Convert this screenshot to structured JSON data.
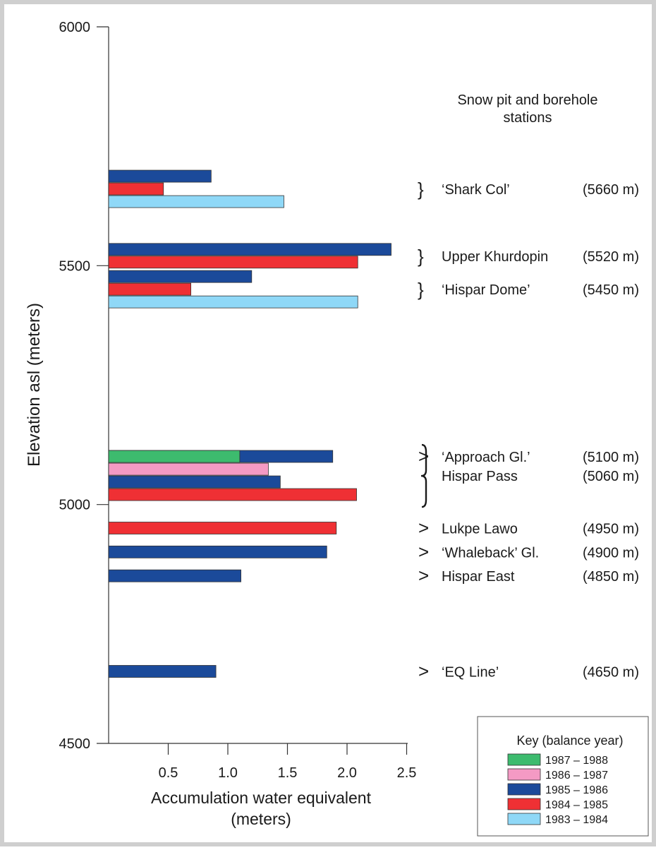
{
  "chart_data": {
    "type": "bar",
    "orientation": "horizontal",
    "ylabel": "Elevation asl (meters)",
    "xlabel_line1": "Accumulation water equivalent",
    "xlabel_line2": "(meters)",
    "yticks": [
      4500,
      5000,
      5500,
      6000
    ],
    "xticks": [
      "0.5",
      "1.0",
      "1.5",
      "2.0",
      "2.5"
    ],
    "xlim": [
      0,
      2.5
    ],
    "ylim": [
      4500,
      6000
    ],
    "stations_title_line1": "Snow pit and borehole",
    "stations_title_line2": "stations",
    "legend": {
      "title": "Key (balance year)",
      "placement": "bottom-right",
      "items": [
        {
          "label": "1987 – 1988",
          "color": "#3dbb6e"
        },
        {
          "label": "1986 – 1987",
          "color": "#f49ac4"
        },
        {
          "label": "1985 – 1986",
          "color": "#1b4a9a"
        },
        {
          "label": "1984 – 1985",
          "color": "#ef3034"
        },
        {
          "label": "1983 – 1984",
          "color": "#8fd8f7"
        }
      ]
    },
    "groups": [
      {
        "name": "‘Shark Col’",
        "elevation_label": "(5660 m)",
        "elevation": 5660,
        "symbol": "brace",
        "bars": [
          {
            "series": "1985 – 1986",
            "value": 0.86
          },
          {
            "series": "1984 – 1985",
            "value": 0.46
          },
          {
            "series": "1983 – 1984",
            "value": 1.47
          }
        ]
      },
      {
        "name": "Upper Khurdopin",
        "elevation_label": "(5520 m)",
        "elevation": 5520,
        "symbol": "brace",
        "bars": [
          {
            "series": "1985 – 1986",
            "value": 2.37
          },
          {
            "series": "1984 – 1985",
            "value": 2.09
          }
        ]
      },
      {
        "name": "‘Hispar Dome’",
        "elevation_label": "(5450 m)",
        "elevation": 5450,
        "symbol": "brace",
        "bars": [
          {
            "series": "1985 – 1986",
            "value": 1.2
          },
          {
            "series": "1984 – 1985",
            "value": 0.69
          },
          {
            "series": "1983 – 1984",
            "value": 2.09
          }
        ]
      },
      {
        "name": "‘Approach Gl.’",
        "elevation_label": "(5100 m)",
        "elevation": 5100,
        "symbol": "arrow",
        "bars": [
          {
            "series": "1985 – 1986",
            "value": 1.88
          }
        ]
      },
      {
        "name": "Hispar Pass",
        "elevation_label": "(5060 m)",
        "elevation": 5060,
        "symbol": "tallbrace",
        "bars": [
          {
            "series": "1987 – 1988",
            "value": 1.1
          },
          {
            "series": "1986 – 1987",
            "value": 1.34
          },
          {
            "series": "1985 – 1986",
            "value": 1.44
          },
          {
            "series": "1984 – 1985",
            "value": 2.08
          }
        ]
      },
      {
        "name": "Lukpe Lawo",
        "elevation_label": "(4950 m)",
        "elevation": 4950,
        "symbol": "arrow",
        "bars": [
          {
            "series": "1984 – 1985",
            "value": 1.91
          }
        ]
      },
      {
        "name": "‘Whaleback’ Gl.",
        "elevation_label": "(4900 m)",
        "elevation": 4900,
        "symbol": "arrow",
        "bars": [
          {
            "series": "1985 – 1986",
            "value": 1.83
          }
        ]
      },
      {
        "name": "Hispar East",
        "elevation_label": "(4850 m)",
        "elevation": 4850,
        "symbol": "arrow",
        "bars": [
          {
            "series": "1985 – 1986",
            "value": 1.11
          }
        ]
      },
      {
        "name": "‘EQ Line’",
        "elevation_label": "(4650 m)",
        "elevation": 4650,
        "symbol": "arrow",
        "bars": [
          {
            "series": "1985 – 1986",
            "value": 0.9
          }
        ]
      }
    ]
  }
}
